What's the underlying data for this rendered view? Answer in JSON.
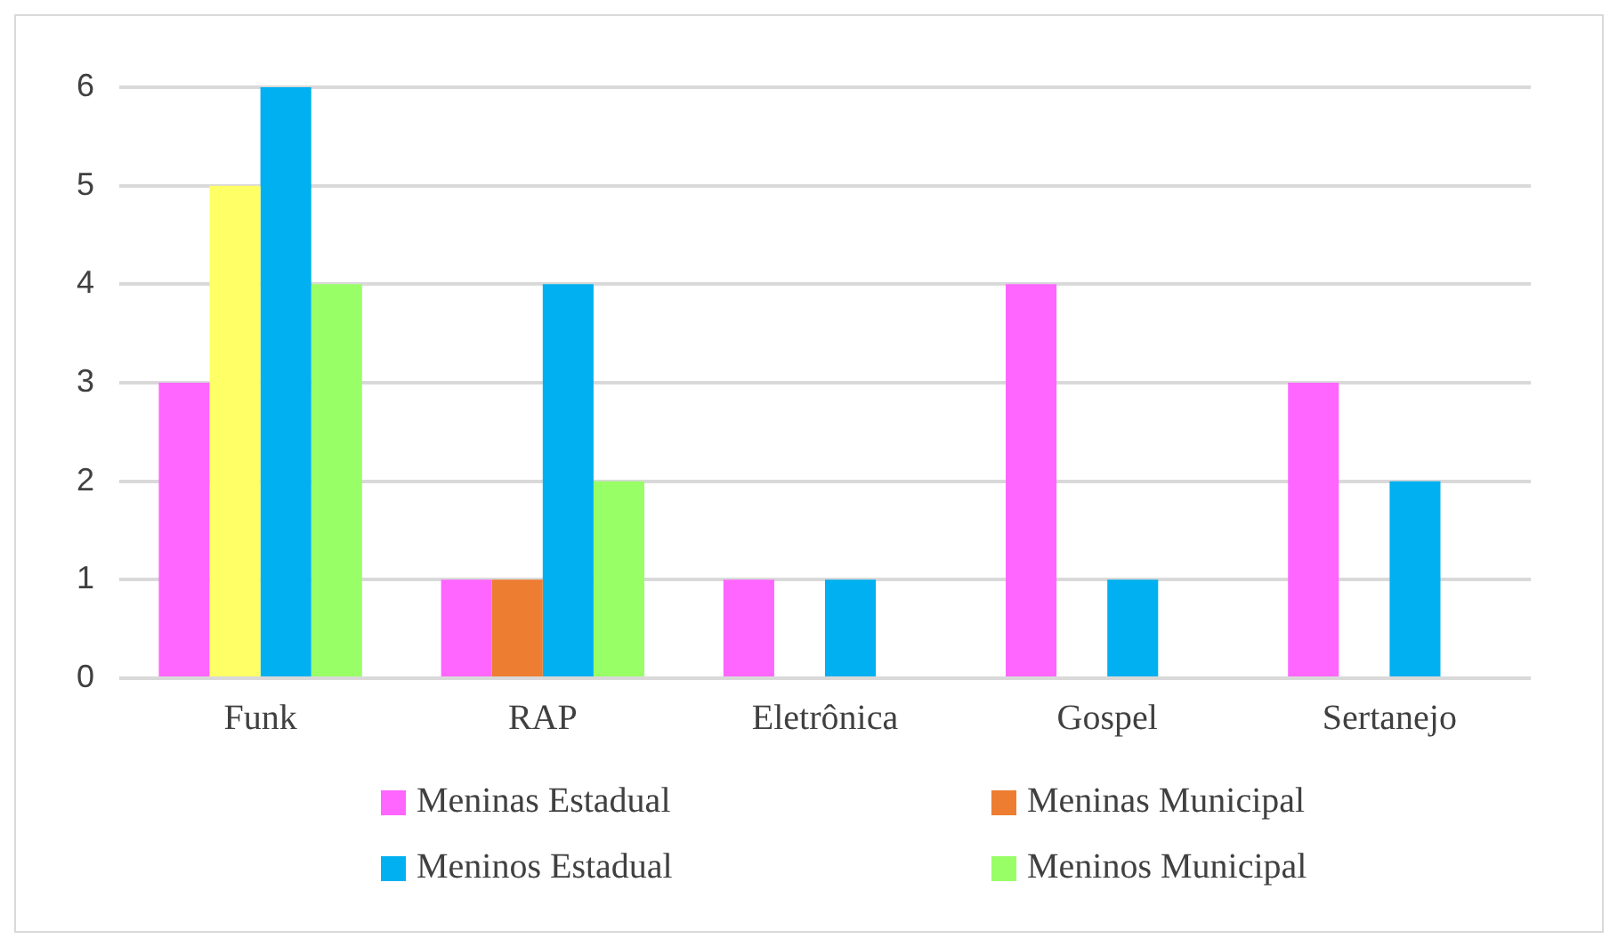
{
  "chart_data": {
    "type": "bar",
    "categories": [
      "Funk",
      "RAP",
      "Eletrônica",
      "Gospel",
      "Sertanejo"
    ],
    "series": [
      {
        "name": "Meninas Estadual",
        "color": "#ff66ff",
        "values": [
          3,
          1,
          1,
          4,
          3
        ]
      },
      {
        "name": "Meninas Municipal",
        "color": "#ed7d31",
        "colors": [
          "#ffff66",
          "#ed7d31",
          "#ed7d31",
          "#ed7d31",
          "#ed7d31"
        ],
        "values": [
          5,
          1,
          null,
          null,
          null
        ]
      },
      {
        "name": "Meninos Estadual",
        "color": "#00b0f0",
        "values": [
          6,
          4,
          1,
          1,
          2
        ]
      },
      {
        "name": "Meninos Municipal",
        "color": "#99ff66",
        "values": [
          4,
          2,
          null,
          null,
          null
        ]
      }
    ],
    "ylim": [
      0,
      6
    ],
    "yticks": [
      0,
      1,
      2,
      3,
      4,
      5,
      6
    ],
    "grid": "y",
    "legend": "bottom"
  }
}
